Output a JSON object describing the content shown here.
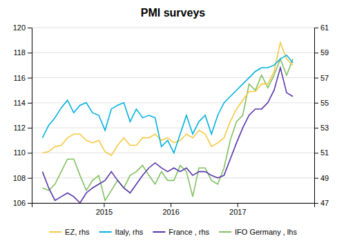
{
  "chart_data": {
    "type": "line",
    "title": "PMI surveys",
    "x": [
      2014.08,
      2014.17375,
      2014.2675,
      2014.36125,
      2014.455,
      2014.54875,
      2014.6425,
      2014.73625,
      2014.83,
      2014.92375,
      2015.0175,
      2015.11125,
      2015.205,
      2015.29875,
      2015.3925,
      2015.48625,
      2015.58,
      2015.67375,
      2015.7675,
      2015.86125,
      2015.955,
      2016.04875,
      2016.1425,
      2016.23625,
      2016.33,
      2016.42375,
      2016.5175,
      2016.61125,
      2016.705,
      2016.79875,
      2016.8925,
      2016.98625,
      2017.08,
      2017.17375,
      2017.2675,
      2017.36125,
      2017.455,
      2017.54875,
      2017.6425,
      2017.73625,
      2017.83
    ],
    "xlim": [
      2013.92,
      2018.15
    ],
    "xticks": [
      2015,
      2016,
      2017
    ],
    "ylim": [
      106,
      120
    ],
    "yticks": [
      106,
      108,
      110,
      112,
      114,
      116,
      118,
      120
    ],
    "y2lim": [
      47,
      61
    ],
    "y2ticks": [
      47,
      49,
      51,
      53,
      55,
      57,
      59,
      61
    ],
    "grid": true,
    "legend": "bottom",
    "series": [
      {
        "name": "EZ, rhs",
        "color": "#f5c842",
        "axis": "y2",
        "values": [
          51.0,
          51.1,
          51.5,
          51.6,
          52.2,
          52.5,
          52.5,
          52.0,
          51.8,
          52.0,
          51.1,
          50.8,
          51.6,
          52.2,
          51.6,
          51.6,
          52.2,
          52.2,
          52.5,
          52.0,
          52.2,
          51.8,
          52.0,
          52.5,
          52.2,
          52.8,
          52.5,
          51.5,
          51.8,
          52.2,
          53.5,
          54.5,
          55.2,
          55.9,
          55.9,
          56.5,
          56.5,
          57.5,
          59.8,
          58.5,
          58.0
        ]
      },
      {
        "name": "Italy, rhs",
        "color": "#00b0e0",
        "axis": "y2",
        "values": [
          52.2,
          53.2,
          53.8,
          54.6,
          55.2,
          54.2,
          54.8,
          55.0,
          54.2,
          54.0,
          52.8,
          54.5,
          54.8,
          55.0,
          53.5,
          54.5,
          53.8,
          54.0,
          53.8,
          51.5,
          52.0,
          51.0,
          52.5,
          54.0,
          52.5,
          53.5,
          54.0,
          52.5,
          54.0,
          55.0,
          55.5,
          56.0,
          56.5,
          57.0,
          57.5,
          57.8,
          57.8,
          58.0,
          58.5,
          58.8,
          58.2
        ]
      },
      {
        "name": "France , rhs",
        "color": "#5533aa",
        "axis": "y2",
        "values": [
          49.5,
          48.2,
          47.2,
          47.5,
          47.8,
          47.5,
          47.0,
          47.8,
          48.2,
          48.5,
          48.8,
          49.5,
          48.8,
          48.2,
          47.8,
          48.5,
          49.2,
          49.8,
          50.2,
          49.8,
          49.5,
          49.8,
          49.5,
          49.8,
          49.2,
          49.5,
          49.5,
          49.2,
          49.0,
          49.2,
          50.5,
          51.8,
          53.0,
          54.0,
          54.5,
          54.5,
          55.0,
          56.0,
          57.8,
          55.8,
          55.5
        ]
      },
      {
        "name": "IFO Germany , lhs",
        "color": "#80c060",
        "axis": "y",
        "values": [
          107.2,
          107.0,
          107.5,
          108.5,
          109.5,
          109.5,
          108.2,
          107.0,
          107.8,
          108.2,
          106.2,
          107.0,
          107.8,
          107.2,
          108.2,
          108.5,
          109.0,
          108.2,
          107.5,
          108.5,
          107.8,
          107.8,
          109.0,
          108.5,
          106.5,
          108.8,
          108.8,
          107.8,
          107.5,
          108.8,
          111.0,
          112.5,
          113.0,
          115.5,
          115.0,
          116.2,
          115.2,
          116.2,
          117.5,
          116.2,
          117.5
        ]
      }
    ]
  }
}
